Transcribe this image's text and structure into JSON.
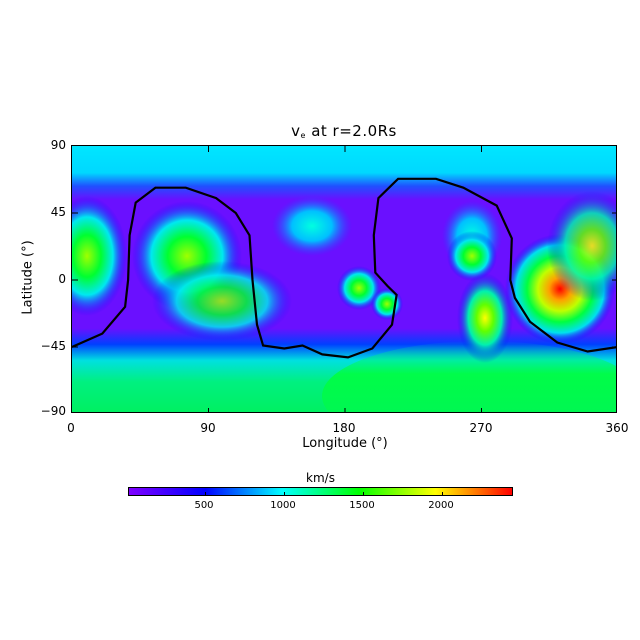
{
  "chart_data": {
    "type": "heatmap",
    "title": "v_e at r=2.0Rs",
    "title_main": "v",
    "title_sub": "e",
    "title_rest": " at r=2.0Rs",
    "xlabel": "Longitude (°)",
    "ylabel": "Latitude (°)",
    "xlim": [
      0,
      360
    ],
    "ylim": [
      -90,
      90
    ],
    "xticks": [
      "0",
      "90",
      "180",
      "270",
      "360"
    ],
    "yticks": [
      "90",
      "45",
      "0",
      "−45",
      "−90"
    ],
    "grid": false,
    "colorbar": {
      "label": "km/s",
      "position": "bottom",
      "range": [
        0,
        2450
      ],
      "ticks": [
        "500",
        "1000",
        "1500",
        "2000"
      ],
      "colormap": [
        "#7f00ff",
        "#0000ff",
        "#00ffff",
        "#00ff00",
        "#ffff00",
        "#ff0000"
      ]
    },
    "features": [
      {
        "description": "Cyan band at high northern latitudes",
        "lat_range": [
          68,
          90
        ],
        "approx_value_kms": 900
      },
      {
        "description": "Green low-latitude southern band",
        "lat_range": [
          -90,
          -55
        ],
        "approx_value_kms": 1300
      },
      {
        "description": "Red/orange peak",
        "lon": 325,
        "lat": -10,
        "approx_value_kms": 2350
      },
      {
        "description": "Yellow-green peak",
        "lon": 272,
        "lat": -25,
        "approx_value_kms": 1800
      },
      {
        "description": "Green blob",
        "lon": 70,
        "lat": 15,
        "approx_value_kms": 1600
      },
      {
        "description": "Green blob near left edge",
        "lon": 10,
        "lat": 15,
        "approx_value_kms": 1500
      },
      {
        "description": "Small green spots",
        "lon": 188,
        "lat": -8,
        "approx_value_kms": 1300
      }
    ],
    "contour": {
      "color": "#000000",
      "description": "Neutral line (black contour)",
      "points_lon_lat": [
        [
          0,
          -45
        ],
        [
          20,
          -36
        ],
        [
          35,
          -18
        ],
        [
          37,
          0
        ],
        [
          38,
          30
        ],
        [
          42,
          52
        ],
        [
          55,
          62
        ],
        [
          75,
          62
        ],
        [
          95,
          55
        ],
        [
          108,
          45
        ],
        [
          117,
          30
        ],
        [
          119,
          0
        ],
        [
          122,
          -30
        ],
        [
          126,
          -44
        ],
        [
          140,
          -46
        ],
        [
          152,
          -44
        ],
        [
          165,
          -50
        ],
        [
          182,
          -52
        ],
        [
          198,
          -46
        ],
        [
          211,
          -30
        ],
        [
          214,
          -10
        ],
        [
          208,
          -4
        ],
        [
          200,
          5
        ],
        [
          199,
          30
        ],
        [
          202,
          55
        ],
        [
          215,
          68
        ],
        [
          240,
          68
        ],
        [
          258,
          62
        ],
        [
          280,
          50
        ],
        [
          290,
          28
        ],
        [
          289,
          0
        ],
        [
          292,
          -12
        ],
        [
          302,
          -28
        ],
        [
          320,
          -42
        ],
        [
          340,
          -48
        ],
        [
          360,
          -45
        ]
      ]
    }
  }
}
